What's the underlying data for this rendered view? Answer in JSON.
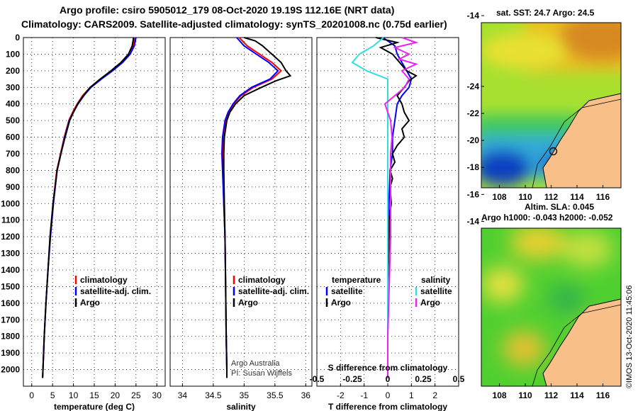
{
  "header": {
    "title_line1": "Argo profile: csiro 5905012_179 08-Oct-2020 19.19S 112.16E (NRT data)",
    "title_line2": "Climatology: CARS2009. Satellite-adjusted climatology: synTS_20201008.nc (0.75d earlier)"
  },
  "maps": {
    "sst_title": "sat. SST: 24.7 Argo: 24.5",
    "sla_title_line1": "Altim. SLA: 0.045",
    "sla_title_line2": "Argo h1000: -0.043 h2000: -0.052",
    "lat_ticks": [
      "-14",
      "-16",
      "-18",
      "-20",
      "-22",
      "-24"
    ],
    "lon_ticks": [
      "108",
      "110",
      "112",
      "114",
      "116"
    ],
    "credit": "©IMOS 13-Oct-2020 11:45:06"
  },
  "colors": {
    "climatology": "#ff0000",
    "satellite": "#0000ff",
    "argo": "#000000",
    "sat_salinity": "#33dddd",
    "argo_salinity": "#ee22ee"
  },
  "chart_data": [
    {
      "type": "line",
      "title": "",
      "xlabel": "temperature (deg C)",
      "ylabel": "",
      "xlim": [
        -2,
        32
      ],
      "ylim": [
        2100,
        0
      ],
      "x_ticks": [
        0,
        5,
        10,
        15,
        20,
        25,
        30
      ],
      "y_ticks": [
        0,
        100,
        200,
        300,
        400,
        500,
        600,
        700,
        800,
        900,
        1000,
        1100,
        1200,
        1300,
        1400,
        1500,
        1600,
        1700,
        1800,
        1900,
        2000
      ],
      "legend": [
        "climatology",
        "satellite-adj. clim.",
        "Argo"
      ],
      "series": [
        {
          "name": "climatology",
          "depth": [
            0,
            50,
            100,
            150,
            200,
            250,
            300,
            350,
            400,
            450,
            500,
            600,
            700,
            800,
            1000,
            1200,
            1400,
            1600,
            1800,
            2000,
            2050
          ],
          "values": [
            24.8,
            24.3,
            23.2,
            21.5,
            19.2,
            16.5,
            14.0,
            12.2,
            10.9,
            9.8,
            8.9,
            7.8,
            6.9,
            6.0,
            5.1,
            4.4,
            3.9,
            3.4,
            3.0,
            2.7,
            2.6
          ]
        },
        {
          "name": "satellite-adj. clim.",
          "depth": [
            0,
            50,
            100,
            150,
            200,
            250,
            300,
            350,
            400,
            450,
            500,
            600,
            700,
            800,
            1000,
            1200,
            1400,
            1600,
            1800,
            2000,
            2050
          ],
          "values": [
            25.0,
            24.6,
            23.6,
            21.8,
            19.4,
            16.7,
            14.2,
            12.5,
            11.1,
            10.0,
            9.0,
            7.9,
            7.0,
            6.1,
            5.2,
            4.5,
            3.9,
            3.4,
            3.0,
            2.7,
            2.6
          ]
        },
        {
          "name": "Argo",
          "depth": [
            0,
            20,
            50,
            100,
            150,
            200,
            250,
            300,
            350,
            400,
            450,
            500,
            600,
            700,
            800,
            1000,
            1200,
            1400,
            1600,
            1800,
            2000,
            2050
          ],
          "values": [
            24.4,
            24.3,
            24.1,
            23.2,
            21.4,
            19.0,
            16.4,
            14.0,
            12.4,
            11.0,
            10.0,
            9.1,
            8.0,
            7.0,
            6.1,
            5.1,
            4.4,
            3.9,
            3.4,
            3.0,
            2.7,
            2.6
          ]
        }
      ]
    },
    {
      "type": "line",
      "title": "",
      "xlabel": "salinity",
      "ylabel": "",
      "xlim": [
        33.8,
        36.1
      ],
      "ylim": [
        2100,
        0
      ],
      "x_ticks": [
        34,
        34.5,
        35,
        35.5,
        36
      ],
      "x_tick_labels": [
        "34",
        "34.5",
        "35",
        "35.5",
        "36"
      ],
      "legend": [
        "climatology",
        "satellite-adj. clim.",
        "Argo"
      ],
      "annotation": [
        "Argo Australia",
        "PI: Susan Wijffels"
      ],
      "series": [
        {
          "name": "climatology",
          "depth": [
            0,
            50,
            100,
            150,
            200,
            250,
            300,
            350,
            400,
            450,
            500,
            600,
            700,
            800,
            1000,
            1200,
            1500,
            1800,
            2000,
            2050
          ],
          "values": [
            34.92,
            35.05,
            35.25,
            35.45,
            35.6,
            35.45,
            35.15,
            34.95,
            34.83,
            34.75,
            34.7,
            34.66,
            34.65,
            34.66,
            34.67,
            34.69,
            34.7,
            34.71,
            34.72,
            34.72
          ]
        },
        {
          "name": "satellite-adj. clim.",
          "depth": [
            0,
            50,
            100,
            150,
            200,
            250,
            300,
            350,
            400,
            450,
            500,
            600,
            700,
            800,
            1000,
            1200,
            1500,
            1800,
            2000,
            2050
          ],
          "values": [
            34.88,
            35.0,
            35.2,
            35.4,
            35.55,
            35.42,
            35.12,
            34.93,
            34.82,
            34.74,
            34.69,
            34.65,
            34.64,
            34.65,
            34.67,
            34.69,
            34.7,
            34.71,
            34.72,
            34.72
          ]
        },
        {
          "name": "Argo",
          "depth": [
            0,
            20,
            50,
            100,
            150,
            200,
            230,
            260,
            300,
            350,
            400,
            450,
            500,
            600,
            700,
            800,
            1000,
            1200,
            1500,
            1800,
            2000,
            2050
          ],
          "values": [
            35.0,
            35.18,
            35.3,
            35.45,
            35.6,
            35.68,
            35.75,
            35.52,
            35.28,
            35.0,
            34.86,
            34.77,
            34.72,
            34.68,
            34.67,
            34.67,
            34.68,
            34.69,
            34.7,
            34.71,
            34.72,
            34.72
          ]
        }
      ]
    },
    {
      "type": "line",
      "title": "",
      "xlabel": "T difference from climatology",
      "xlabel_top": "S difference from climatology",
      "ylabel": "",
      "xlim": [
        -3,
        3
      ],
      "ylim": [
        2100,
        0
      ],
      "x_ticks": [
        -2,
        -1,
        0,
        1,
        2
      ],
      "x_ticks_top": [
        -0.5,
        -0.25,
        0,
        0.25,
        0.5
      ],
      "x_tick_labels_top": [
        "-0.5",
        "-0.25",
        "0",
        "0.25",
        "0.5"
      ],
      "legend_left_title": "temperature",
      "legend_right_title": "salinity",
      "legend_left": [
        "satellite",
        "Argo"
      ],
      "legend_right": [
        "satellite",
        "Argo"
      ],
      "series": [
        {
          "name": "temperature satellite",
          "depth": [
            0,
            50,
            100,
            150,
            200,
            250,
            300,
            350,
            400,
            500,
            600,
            700,
            800,
            1000,
            1200,
            1500,
            1800,
            2000,
            2050
          ],
          "values": [
            -0.2,
            0.3,
            0.4,
            0.6,
            0.8,
            1.0,
            0.9,
            0.6,
            0.4,
            0.3,
            0.2,
            0.2,
            0.1,
            0.05,
            0.05,
            0.0,
            0.0,
            0.0,
            0.0
          ]
        },
        {
          "name": "temperature Argo",
          "depth": [
            0,
            30,
            60,
            100,
            150,
            200,
            230,
            260,
            300,
            350,
            400,
            450,
            500,
            550,
            600,
            650,
            700,
            750,
            800,
            850,
            900,
            1000,
            1100,
            1200,
            1500,
            1800,
            2000,
            2050
          ],
          "values": [
            -0.5,
            0.4,
            -0.3,
            0.2,
            0.5,
            0.8,
            1.2,
            0.9,
            0.7,
            0.4,
            0.6,
            0.7,
            0.9,
            0.6,
            0.7,
            0.4,
            0.2,
            0.3,
            0.1,
            0.2,
            0.1,
            0.15,
            0.05,
            0.05,
            0.0,
            0.0,
            0.0,
            0.0
          ]
        },
        {
          "name": "salinity satellite",
          "depth": [
            0,
            50,
            100,
            150,
            200,
            250,
            300,
            350,
            400,
            500,
            600,
            700,
            800,
            1000,
            1500,
            2000,
            2050
          ],
          "values": [
            -0.03,
            -0.1,
            -0.2,
            -0.25,
            -0.15,
            0.0,
            0.0,
            0.0,
            0.0,
            0.0,
            0.0,
            0.0,
            0.0,
            0.0,
            0.0,
            0.0,
            0.0
          ]
        },
        {
          "name": "salinity Argo",
          "depth": [
            0,
            30,
            60,
            100,
            130,
            160,
            200,
            250,
            300,
            350,
            400,
            450,
            500,
            600,
            700,
            800,
            1000,
            1200,
            1500,
            1800,
            2000,
            2050
          ],
          "values": [
            0.1,
            0.2,
            0.05,
            0.15,
            0.08,
            0.2,
            0.1,
            0.15,
            0.12,
            0.05,
            -0.02,
            0.0,
            0.02,
            0.03,
            0.02,
            0.02,
            0.02,
            0.02,
            0.01,
            0.0,
            0.0,
            0.0
          ]
        }
      ]
    }
  ]
}
